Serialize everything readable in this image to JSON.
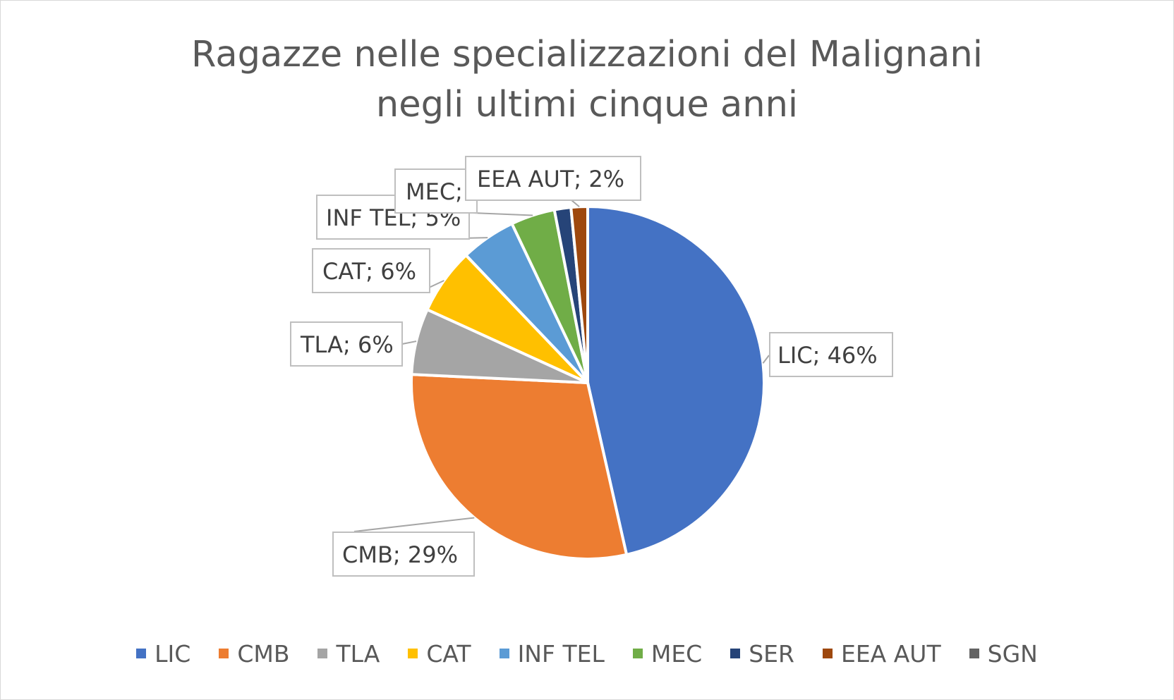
{
  "chart_data": {
    "type": "pie",
    "title": "Ragazze nelle specializzazioni del Malignani negli ultimi cinque anni",
    "title_lines": [
      "Ragazze nelle specializzazioni del Malignani",
      "negli ultimi cinque anni"
    ],
    "categories": [
      "LIC",
      "CMB",
      "TLA",
      "CAT",
      "INF TEL",
      "MEC",
      "SER",
      "EEA AUT",
      "SGN"
    ],
    "values": [
      46,
      29,
      6,
      6,
      5,
      4,
      1.5,
      1.5,
      0
    ],
    "colors": [
      "#4472C4",
      "#ED7D31",
      "#A5A5A5",
      "#FFC000",
      "#5B9BD5",
      "#70AD47",
      "#264478",
      "#9E480E",
      "#636363"
    ],
    "data_labels": [
      {
        "category": "LIC",
        "text": "LIC; 46%"
      },
      {
        "category": "CMB",
        "text": "CMB; 29%"
      },
      {
        "category": "TLA",
        "text": "TLA; 6%"
      },
      {
        "category": "CAT",
        "text": "CAT; 6%"
      },
      {
        "category": "INF TEL",
        "text": "INF TEL; 5%"
      },
      {
        "category": "MEC",
        "text": "MEC;"
      },
      {
        "category": "EEA AUT",
        "text": "EEA AUT; 2%"
      }
    ],
    "legend_position": "bottom"
  }
}
